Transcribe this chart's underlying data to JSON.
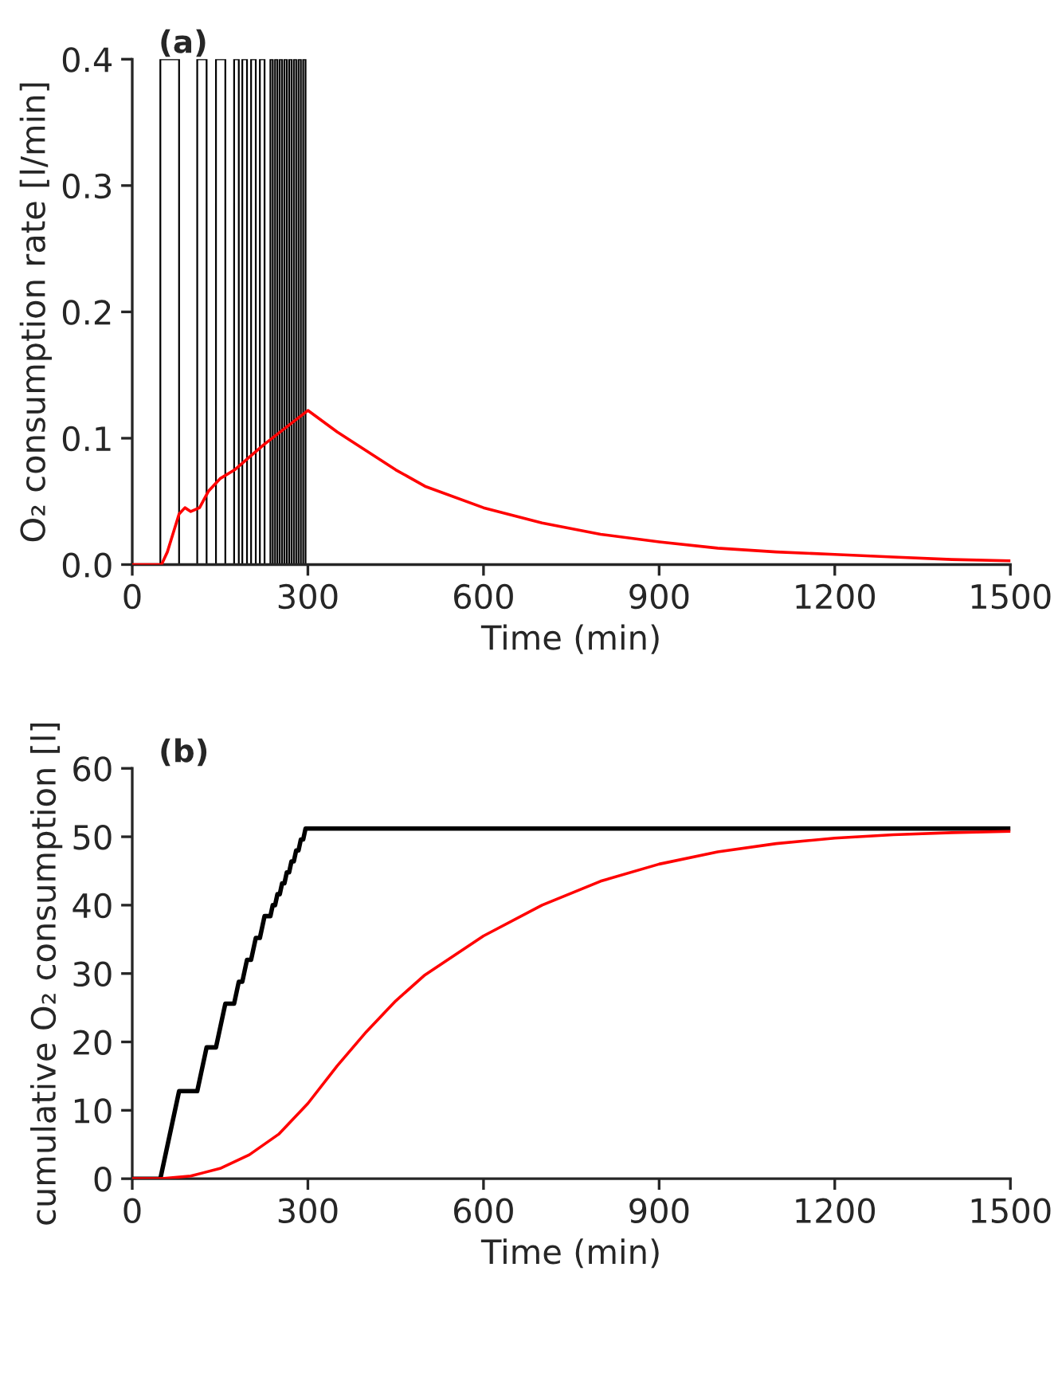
{
  "chart_data": [
    {
      "type": "line",
      "title": "(a)",
      "xlabel": "Time (min)",
      "ylabel": "O₂ consumption rate [l/min]",
      "xlim": [
        0,
        1500
      ],
      "xticks": [
        0,
        300,
        600,
        900,
        1200,
        1500
      ],
      "ylim": [
        0,
        0.4
      ],
      "yticks": [
        {
          "value": 0,
          "label": "0.0"
        },
        0.1,
        0.2,
        0.3,
        0.4
      ],
      "grid": false,
      "legend": false,
      "series": [
        {
          "color": "#000000",
          "x": [
            0,
            48,
            48,
            80,
            80,
            111,
            111,
            127,
            127,
            143,
            143,
            159,
            159,
            174,
            174,
            182,
            182,
            188,
            188,
            196,
            196,
            203,
            203,
            211,
            211,
            218,
            218,
            226,
            226,
            236,
            236,
            240,
            240,
            244,
            244,
            248,
            248,
            252,
            252,
            256,
            256,
            260,
            260,
            264,
            264,
            268,
            268,
            272,
            272,
            276,
            276,
            280,
            280,
            284,
            284,
            288,
            288,
            292,
            292,
            296,
            296
          ],
          "values": [
            0,
            0,
            0.4,
            0.4,
            0,
            0,
            0.4,
            0.4,
            0,
            0,
            0.4,
            0.4,
            0,
            0,
            0.4,
            0.4,
            0,
            0,
            0.4,
            0.4,
            0,
            0,
            0.4,
            0.4,
            0,
            0,
            0.4,
            0.4,
            0,
            0,
            0.4,
            0.4,
            0,
            0,
            0.4,
            0.4,
            0,
            0,
            0.4,
            0.4,
            0,
            0,
            0.4,
            0.4,
            0,
            0,
            0.4,
            0.4,
            0,
            0,
            0.4,
            0.4,
            0,
            0,
            0.4,
            0.4,
            0,
            0,
            0.4,
            0.4,
            0
          ]
        },
        {
          "color": "#ff0000",
          "x": [
            0,
            50,
            60,
            80,
            90,
            100,
            115,
            130,
            150,
            175,
            200,
            225,
            250,
            275,
            300,
            350,
            400,
            450,
            500,
            600,
            700,
            800,
            900,
            1000,
            1100,
            1200,
            1300,
            1400,
            1500
          ],
          "values": [
            0,
            0,
            0.01,
            0.04,
            0.045,
            0.042,
            0.045,
            0.058,
            0.068,
            0.075,
            0.085,
            0.095,
            0.104,
            0.113,
            0.122,
            0.105,
            0.09,
            0.075,
            0.062,
            0.045,
            0.033,
            0.024,
            0.018,
            0.013,
            0.01,
            0.008,
            0.006,
            0.004,
            0.003
          ]
        }
      ]
    },
    {
      "type": "line",
      "title": "(b)",
      "xlabel": "Time (min)",
      "ylabel": "cumulative O₂ consumption [l]",
      "xlim": [
        0,
        1500
      ],
      "xticks": [
        0,
        300,
        600,
        900,
        1200,
        1500
      ],
      "ylim": [
        0,
        60
      ],
      "yticks": [
        0,
        10,
        20,
        30,
        40,
        50,
        60
      ],
      "grid": false,
      "legend": false,
      "series": [
        {
          "color": "#000000",
          "x": [
            0,
            48,
            80,
            111,
            127,
            143,
            159,
            174,
            182,
            188,
            196,
            203,
            211,
            218,
            226,
            236,
            240,
            244,
            248,
            252,
            256,
            260,
            264,
            268,
            272,
            276,
            280,
            284,
            288,
            292,
            296,
            1500
          ],
          "values": [
            0,
            0,
            12.8,
            12.8,
            19.2,
            19.2,
            25.6,
            25.6,
            28.8,
            28.8,
            32,
            32,
            35.2,
            35.2,
            38.4,
            38.4,
            40,
            40,
            41.6,
            41.6,
            43.2,
            43.2,
            44.8,
            44.8,
            46.4,
            46.4,
            48,
            48,
            49.6,
            49.6,
            51.2,
            51.2
          ]
        },
        {
          "color": "#ff0000",
          "x": [
            0,
            50,
            100,
            150,
            200,
            250,
            300,
            350,
            400,
            450,
            500,
            600,
            700,
            800,
            900,
            1000,
            1100,
            1200,
            1300,
            1400,
            1500
          ],
          "values": [
            0,
            0,
            0.4,
            1.5,
            3.5,
            6.5,
            11,
            16.5,
            21.5,
            26,
            29.8,
            35.5,
            40,
            43.5,
            46,
            47.8,
            49,
            49.8,
            50.3,
            50.6,
            50.8
          ]
        }
      ]
    }
  ]
}
